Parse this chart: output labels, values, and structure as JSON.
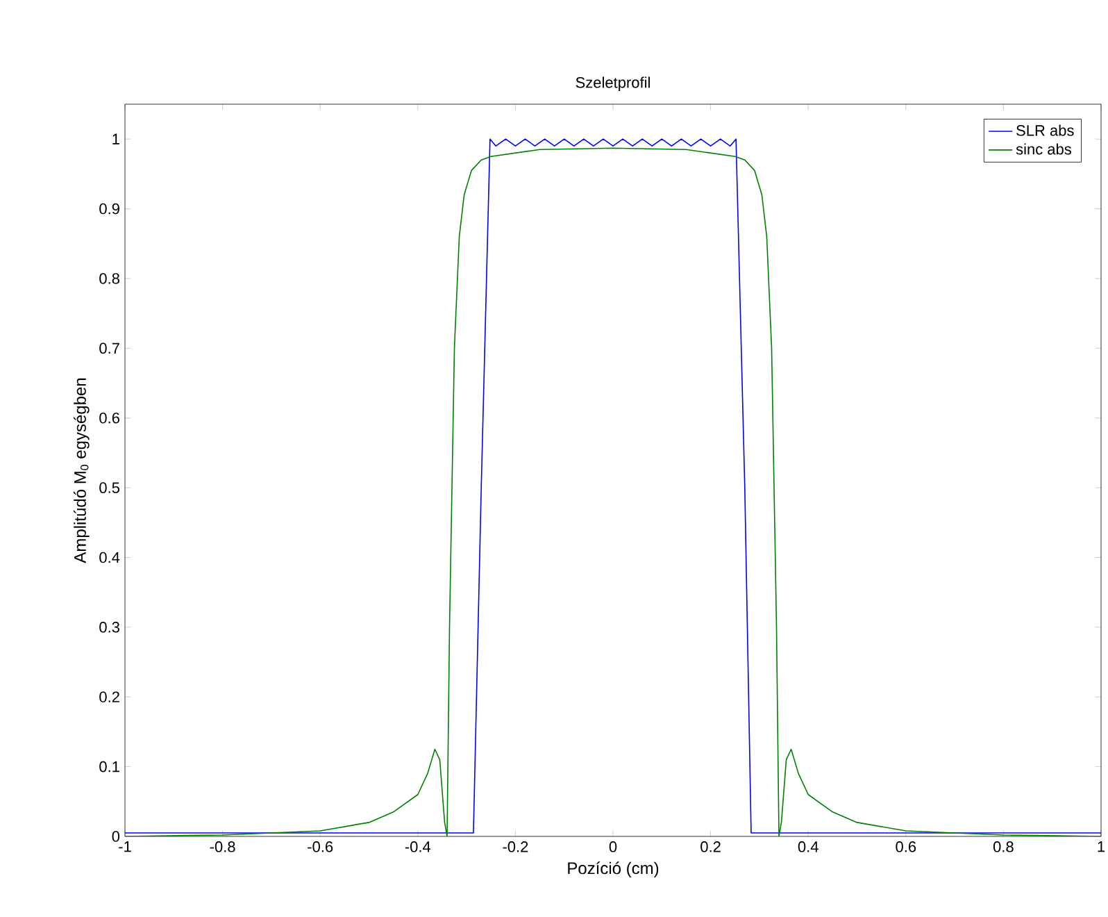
{
  "chart_data": {
    "type": "line",
    "title": "Szeletprofil",
    "xlabel": "Pozíció (cm)",
    "ylabel": "Amplitúdó M$_{0}$ egységben",
    "xlim": [
      -1,
      1
    ],
    "ylim": [
      0,
      1.05
    ],
    "xticks": [
      -1,
      -0.8,
      -0.6,
      -0.4,
      -0.2,
      0,
      0.2,
      0.4,
      0.6,
      0.8,
      1
    ],
    "yticks": [
      0,
      0.1,
      0.2,
      0.3,
      0.4,
      0.5,
      0.6,
      0.7,
      0.8,
      0.9,
      1
    ],
    "legend": "top right",
    "grid": false,
    "series": [
      {
        "name": "SLR abs",
        "color": "#0000ff",
        "x": [
          -1,
          -0.9,
          -0.8,
          -0.7,
          -0.6,
          -0.5,
          -0.4,
          -0.3,
          -0.286,
          -0.27,
          -0.252,
          -0.24,
          -0.22,
          -0.2,
          -0.18,
          -0.16,
          -0.14,
          -0.12,
          -0.1,
          -0.08,
          -0.06,
          -0.04,
          -0.02,
          0,
          0.02,
          0.04,
          0.06,
          0.08,
          0.1,
          0.12,
          0.14,
          0.16,
          0.18,
          0.2,
          0.22,
          0.24,
          0.252,
          0.27,
          0.283,
          0.3,
          0.4,
          0.5,
          0.6,
          0.7,
          0.8,
          0.9,
          1
        ],
        "values": [
          0.005,
          0.005,
          0.005,
          0.005,
          0.005,
          0.005,
          0.005,
          0.005,
          0.005,
          0.5,
          1.0,
          0.99,
          1.0,
          0.99,
          1.0,
          0.99,
          1.0,
          0.99,
          1.0,
          0.99,
          1.0,
          0.99,
          1.0,
          0.99,
          1.0,
          0.99,
          1.0,
          0.99,
          1.0,
          0.99,
          1.0,
          0.99,
          1.0,
          0.99,
          1.0,
          0.99,
          1.0,
          0.5,
          0.005,
          0.005,
          0.005,
          0.005,
          0.005,
          0.005,
          0.005,
          0.005,
          0.005
        ]
      },
      {
        "name": "sinc abs",
        "color": "#008000",
        "x": [
          -1,
          -0.8,
          -0.6,
          -0.5,
          -0.45,
          -0.4,
          -0.38,
          -0.365,
          -0.355,
          -0.345,
          -0.34,
          -0.335,
          -0.325,
          -0.315,
          -0.305,
          -0.29,
          -0.27,
          -0.25,
          -0.15,
          0,
          0.15,
          0.25,
          0.27,
          0.29,
          0.305,
          0.315,
          0.325,
          0.335,
          0.34,
          0.345,
          0.355,
          0.365,
          0.38,
          0.4,
          0.45,
          0.5,
          0.6,
          0.8,
          1
        ],
        "values": [
          0.0,
          0.002,
          0.008,
          0.02,
          0.035,
          0.06,
          0.09,
          0.125,
          0.11,
          0.02,
          0.0,
          0.3,
          0.7,
          0.86,
          0.92,
          0.955,
          0.97,
          0.975,
          0.985,
          0.987,
          0.985,
          0.975,
          0.97,
          0.955,
          0.92,
          0.86,
          0.7,
          0.3,
          0.0,
          0.02,
          0.11,
          0.125,
          0.09,
          0.06,
          0.035,
          0.02,
          0.008,
          0.002,
          0.0
        ]
      }
    ]
  }
}
